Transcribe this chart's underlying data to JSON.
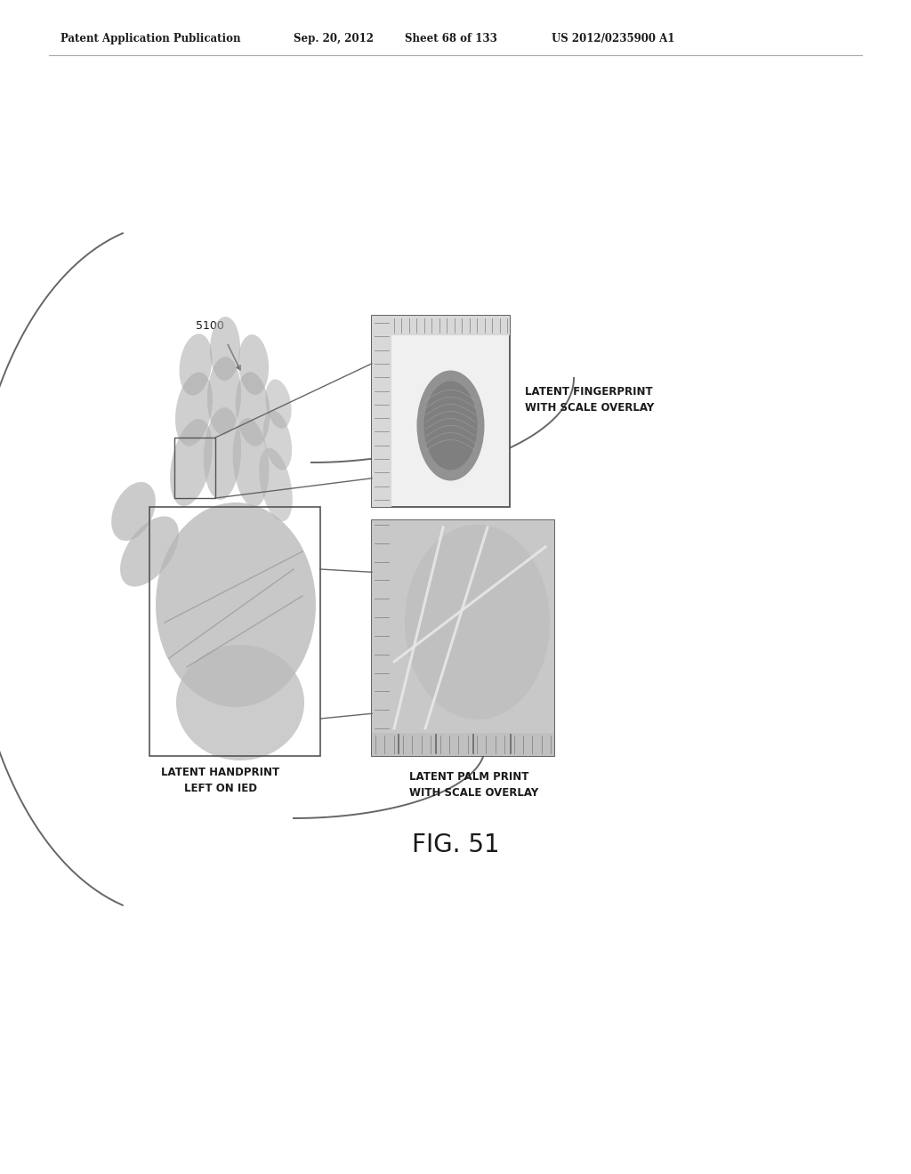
{
  "bg_color": "#ffffff",
  "header_text": "Patent Application Publication",
  "header_date": "Sep. 20, 2012",
  "header_sheet": "Sheet 68 of 133",
  "header_patent": "US 2012/0235900 A1",
  "label_5100": "5100",
  "label_handprint": "LATENT HANDPRINT\nLEFT ON IED",
  "label_fingerprint": "LATENT FINGERPRINT\nWITH SCALE OVERLAY",
  "label_palmprint": "LATENT PALM PRINT\nWITH SCALE OVERLAY",
  "fig_label": "FIG. 51",
  "line_color": "#555555",
  "hand_gray": "#b8b8b8",
  "fp_box_bg": "#e8e8e8",
  "pp_box_bg": "#d8d8d8",
  "scale_gray": "#cccccc",
  "dark_gray": "#888888"
}
